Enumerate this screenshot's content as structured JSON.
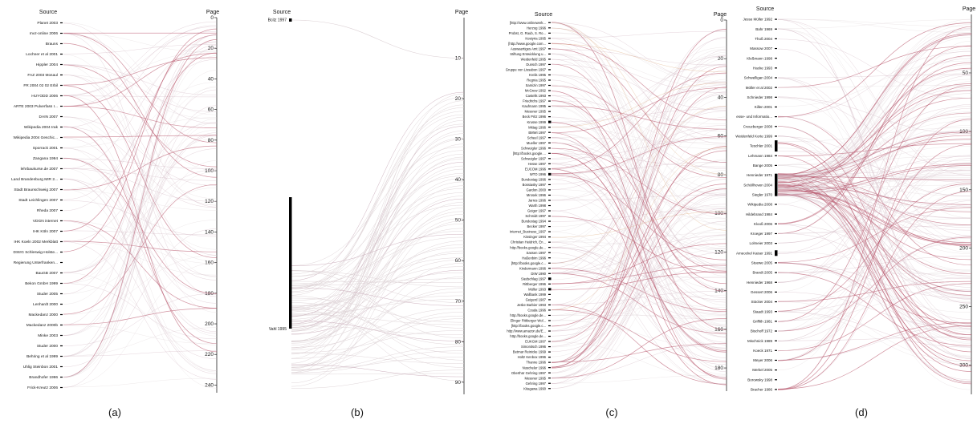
{
  "header": {
    "source": "Source",
    "page": "Page"
  },
  "colors": {
    "link": "#c7a7b6",
    "accent": "#b3475f",
    "link_light": "#dcd0d4",
    "orange": "#d79a5f",
    "axis": "#222222",
    "label": "#111111"
  },
  "panels": [
    {
      "caption": "(a)",
      "sources": [
        "Planet 2003",
        "mvz-online 2006",
        "Brauns",
        "Lochner et al 2001",
        "Hippler 2004",
        "FAZ 2003 Mosaul",
        "FR 2004 02 02 Erbil",
        "HUYODD 2006",
        "ARTE 2003 Pulverfass I...",
        "DAIN 2007",
        "Wikipedia 2004 Irak",
        "Wikipedia 2004 Geschic...",
        "Sporrack 2001",
        "Zangana 1994",
        "lehrbaukurse.de 2007",
        "Land Brandenburg MIR 2...",
        "Stadt Braunschweig 2007",
        "Stadt Leichlingen 2007",
        "Rheda 2007",
        "VDGN internet",
        "IHK Köln 2007",
        "IHK Koeln 2002 Merkblatt",
        "DStrG Schleswig-Holste...",
        "Regierung Unterfranken...",
        "BauGB 2007",
        "Bekon GmbH 1999",
        "Studer 2005",
        "Lenhardt 2000",
        "Mackedanz 2000",
        "Mackedanz 2000b",
        "Minke 2003",
        "Studer 2000",
        "Behring et al 1999",
        "Uhlig Steinbon 2001",
        "Brandhofer 1996",
        "Frick-Kreutz 2006"
      ],
      "page_ticks": [
        "0",
        "20",
        "40",
        "60",
        "80",
        "100",
        "120",
        "140",
        "160",
        "180",
        "200",
        "220",
        "240"
      ],
      "page_max": 245
    },
    {
      "caption": "(b)",
      "sources": [
        "Bcitz 1997",
        "Vahl 1995"
      ],
      "page_ticks": [
        "10",
        "20",
        "30",
        "40",
        "50",
        "60",
        "70",
        "80",
        "90"
      ],
      "page_max": 93
    },
    {
      "caption": "(c)",
      "sources": [
        "[http://www.onlinewerk...",
        "Herzog 1996",
        "Probst, G. Raub, S. Ro...",
        "Kostyria 1995",
        "[http://www.google.com...",
        "Auswaertiges Amt 1997",
        "Stiftung Entwicklung u...",
        "Weidenfeld 1995",
        "Dunsch 1997",
        "Gruppe von Lissabon 1997",
        "Krelis 1995",
        "Regnia 1995",
        "Samizin 1997",
        "McGrew 1992",
        "Castells 1993",
        "Friedrichs 1997",
        "Kaufmann 1995",
        "Messner 1995",
        "Beck Pritz 1996",
        "Krusse 1999",
        "Mittag 1996",
        "BMWi 1997",
        "Scheel 1997",
        "Mueller 1997",
        "Schweigler 1996",
        "[http://books.google....",
        "Schweigler 1997",
        "Hesse 1997",
        "EUCOM 1996",
        "WTO 1996",
        "Bundestag 1996",
        "Bossiasky 1997",
        "Gardon 2000",
        "Mrosek 1996",
        "Jarres 1996",
        "Warth 1998",
        "Geiger 1997",
        "Schmidt 1997",
        "Bundestag 1994",
        "Becker 1997",
        "Internet_Business_1997",
        "Kissinger 1994",
        "Christian Heidrich, En...",
        "http://books.google.de...",
        "Sassen 1997",
        "Haßenbim 1996",
        "[http://books.google.c...",
        "Kindermann 1996",
        "DIW 1990",
        "Siedschlag 1997",
        "Rittberger 1996",
        "Müller 1993",
        "Wallbank 1999",
        "Geigerd 1987",
        "Jeske Barbier 1993",
        "Czada 1996",
        "http://books.google.de...",
        "Elinger Rittberger Wol...",
        "[http://books.google.c...",
        "http://www.amazon.de/E...",
        "http://books.google.de...",
        "EUKGM 1997",
        "Simonitsch 1996",
        "Betmar Reinicke 1999",
        "Holtz Kenbox 1996",
        "Thanne 1996",
        "Nuscheler 1996",
        "Oberthür Gehring 1997",
        "Messner 1995",
        "Gehring 1997",
        "Kitagawa 1990"
      ],
      "page_ticks": [
        "0",
        "20",
        "40",
        "60",
        "80",
        "100",
        "120",
        "140",
        "160",
        "180"
      ],
      "page_max": 192
    },
    {
      "caption": "(d)",
      "sources": [
        "Jesse Müller 1992",
        "Bahr 1969",
        "Thoß 2004",
        "Massow 2007",
        "Kleßmann 1998",
        "Hacke 1993",
        "Schwelligan 2004",
        "Möller et al 2002",
        "Schnieder 1998",
        "Killen 2001",
        "esse- und Informatio...",
        "Creuzberger 2008",
        "Weidenfeld Korte 1999",
        "Teschler 2001",
        "Lehmann 1984",
        "Bange 2005",
        "Hennieder 1971",
        "Schöllhoven 2004",
        "Siegler 1970",
        "Wikipedia 2008",
        "Hildebrand 1984",
        "Klooß 2006",
        "Kroeger 1997",
        "Lolmeier 2003",
        "Ameockel Kaiser 1991",
        "Stuewe 2005",
        "Brandt 2005",
        "Hennieder 1968",
        "Gessert 2006",
        "Stöcker 2004",
        "Staadt 1993",
        "Griffith 1981",
        "Bischoff 1972",
        "Mischnick 1989",
        "Koeck 1971",
        "Meyer 2006",
        "Merkel 2005",
        "Borowsky 1998",
        "Bracher 1986"
      ],
      "page_ticks": [
        "50",
        "100",
        "150",
        "200",
        "250",
        "300"
      ],
      "page_max": 325
    }
  ]
}
